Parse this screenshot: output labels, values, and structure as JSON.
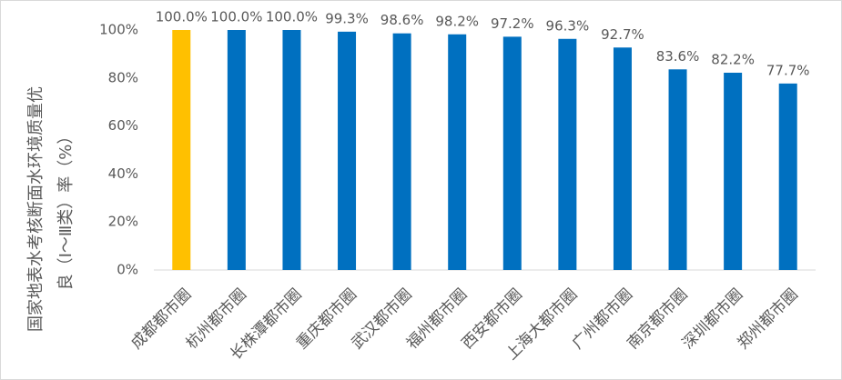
{
  "chart_data": {
    "type": "bar",
    "ylabel": [
      "国家地表水考核断面水环境质量优",
      "良（Ⅰ～Ⅲ类）率（%）"
    ],
    "categories": [
      "成都都市圈",
      "杭州都市圈",
      "长株潭都市圈",
      "重庆都市圈",
      "武汉都市圈",
      "福州都市圈",
      "西安都市圈",
      "上海大都市圈",
      "广州都市圈",
      "南京都市圈",
      "深圳都市圈",
      "郑州都市圈"
    ],
    "values": [
      100.0,
      100.0,
      100.0,
      99.3,
      98.6,
      98.2,
      97.2,
      96.3,
      92.7,
      83.6,
      82.2,
      77.7
    ],
    "value_labels": [
      "100.0%",
      "100.0%",
      "100.0%",
      "99.3%",
      "98.6%",
      "98.2%",
      "97.2%",
      "96.3%",
      "92.7%",
      "83.6%",
      "82.2%",
      "77.7%"
    ],
    "colors": [
      "#FFC000",
      "#0070C0",
      "#0070C0",
      "#0070C0",
      "#0070C0",
      "#0070C0",
      "#0070C0",
      "#0070C0",
      "#0070C0",
      "#0070C0",
      "#0070C0",
      "#0070C0"
    ],
    "ylim": [
      0,
      100
    ],
    "yticks": [
      {
        "value": 0,
        "label": "0%"
      },
      {
        "value": 20,
        "label": "20%"
      },
      {
        "value": 40,
        "label": "40%"
      },
      {
        "value": 60,
        "label": "60%"
      },
      {
        "value": 80,
        "label": "80%"
      },
      {
        "value": 100,
        "label": "100%"
      }
    ],
    "grid": false
  }
}
